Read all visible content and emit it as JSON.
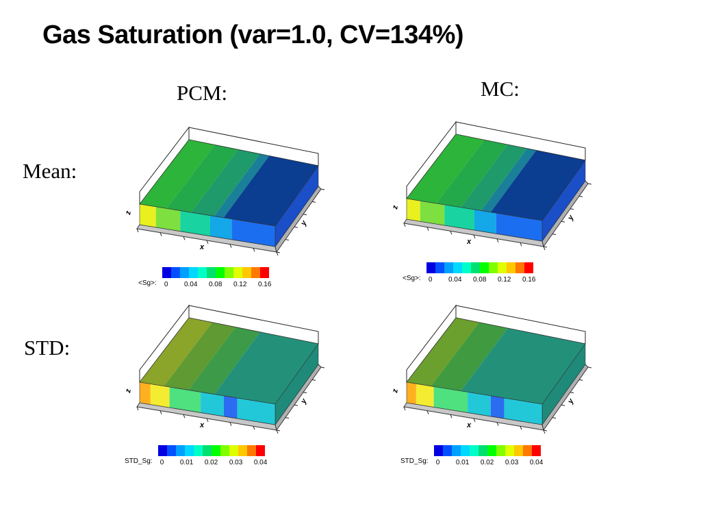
{
  "title": "Gas Saturation (var=1.0, CV=134%)",
  "columns": {
    "pcm": "PCM:",
    "mc": "MC:"
  },
  "rows": {
    "mean": "Mean:",
    "std": "STD:"
  },
  "axes": {
    "x": "x",
    "y": "y",
    "z": "z"
  },
  "colorbars": {
    "mean": {
      "label": "<Sg>:",
      "ticks": [
        "0",
        "0.04",
        "0.08",
        "0.12",
        "0.16"
      ]
    },
    "std": {
      "label": "STD_Sg:",
      "ticks": [
        "0",
        "0.01",
        "0.02",
        "0.03",
        "0.04"
      ]
    }
  },
  "palette": [
    "#0000e0",
    "#0050ff",
    "#00a0ff",
    "#00d8ff",
    "#00ffc8",
    "#00e070",
    "#00ff00",
    "#80ff00",
    "#e0ff00",
    "#ffc800",
    "#ff7800",
    "#ff0000"
  ]
}
